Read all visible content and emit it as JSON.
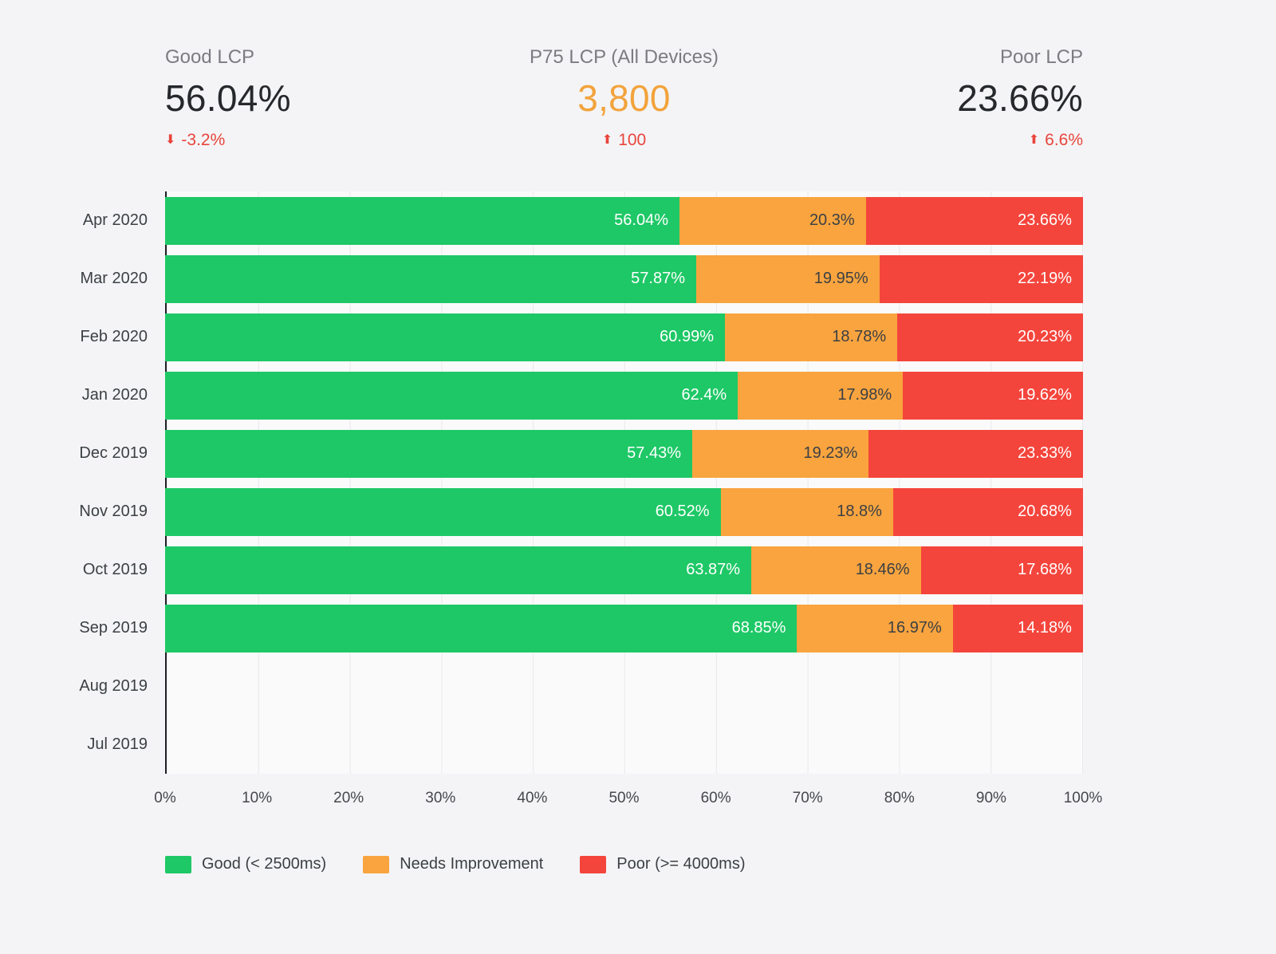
{
  "kpis": {
    "good": {
      "label": "Good LCP",
      "value": "56.04%",
      "delta": "-3.2%",
      "direction": "down"
    },
    "p75": {
      "label": "P75 LCP (All Devices)",
      "value": "3,800",
      "delta": "100",
      "direction": "up"
    },
    "poor": {
      "label": "Poor LCP",
      "value": "23.66%",
      "delta": "6.6%",
      "direction": "up"
    }
  },
  "chart_data": {
    "type": "bar",
    "orientation": "horizontal",
    "stacked": true,
    "unit": "%",
    "xlim": [
      0,
      100
    ],
    "grid": true,
    "legend_position": "bottom",
    "x_ticks": [
      "0%",
      "10%",
      "20%",
      "30%",
      "40%",
      "50%",
      "60%",
      "70%",
      "80%",
      "90%",
      "100%"
    ],
    "categories": [
      "Apr 2020",
      "Mar 2020",
      "Feb 2020",
      "Jan 2020",
      "Dec 2019",
      "Nov 2019",
      "Oct 2019",
      "Sep 2019",
      "Aug 2019",
      "Jul 2019"
    ],
    "series": [
      {
        "key": "good",
        "name": "Good (< 2500ms)",
        "color": "#1ec866",
        "label_color": "#ffffff",
        "values": [
          56.04,
          57.87,
          60.99,
          62.4,
          57.43,
          60.52,
          63.87,
          68.85,
          null,
          null
        ]
      },
      {
        "key": "needs-improvement",
        "name": "Needs Improvement",
        "color": "#f9a43f",
        "label_color": "#3c4043",
        "values": [
          20.3,
          19.95,
          18.78,
          17.98,
          19.23,
          18.8,
          18.46,
          16.97,
          null,
          null
        ]
      },
      {
        "key": "poor",
        "name": "Poor (>= 4000ms)",
        "color": "#f4453c",
        "label_color": "#ffffff",
        "values": [
          23.66,
          22.19,
          20.23,
          19.62,
          23.33,
          20.68,
          17.68,
          14.18,
          null,
          null
        ]
      }
    ]
  },
  "colors": {
    "background": "#f4f4f6",
    "plot_background": "#fafafb",
    "gridline": "#e9e9ec",
    "axis_line": "#202124",
    "kpi_label": "#7b7b81",
    "kpi_value": "#26282b",
    "p75_value": "#f2a33c",
    "delta": "#e8453c",
    "text": "#3c4043"
  }
}
